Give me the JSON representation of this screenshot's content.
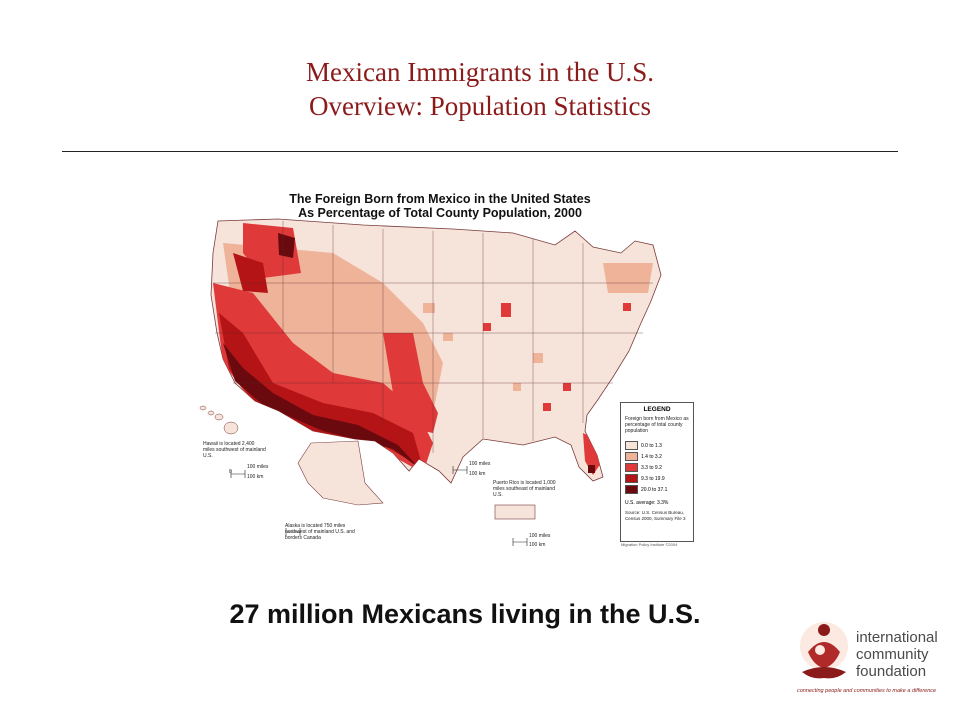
{
  "slide": {
    "title_line1": "Mexican Immigrants in the U.S.",
    "title_line2": "Overview: Population Statistics",
    "headline": "27 million Mexicans living in the U.S."
  },
  "map": {
    "title_line1": "The Foreign Born from Mexico in the United States",
    "title_line2": "As Percentage of Total County Population, 2000",
    "legend": {
      "title": "LEGEND",
      "subtitle": "Foreign born from Mexico as percentage of total county population",
      "classes": [
        {
          "label": "0.0 to 1.3",
          "color": "#f6e3da"
        },
        {
          "label": "1.4 to 3.2",
          "color": "#efb39a"
        },
        {
          "label": "3.3 to 9.2",
          "color": "#e0393a"
        },
        {
          "label": "9.3 to 19.9",
          "color": "#b41416"
        },
        {
          "label": "20.0 to 37.1",
          "color": "#6a0a0e"
        }
      ],
      "average": "U.S. average: 3.3%",
      "source": "Source: U.S. Census Bureau, Census 2000, Summary File 3"
    },
    "credit": "Migration Policy Institute ©2004",
    "notes": {
      "hawaii": "Hawaii is located 2,400 miles southwest of mainland U.S.",
      "alaska": "Alaska is located 750 miles northwest of mainland U.S. and borders Canada",
      "puerto_rico": "Puerto Rico is located 1,000 miles southeast of mainland U.S."
    },
    "scale": {
      "miles": "100 miles",
      "km": "100 km",
      "zero": "0"
    }
  },
  "logo": {
    "line1": "international",
    "line2": "community",
    "line3": "foundation",
    "tagline": "connecting people and communities to make a difference",
    "color": "#8b1a1a"
  }
}
